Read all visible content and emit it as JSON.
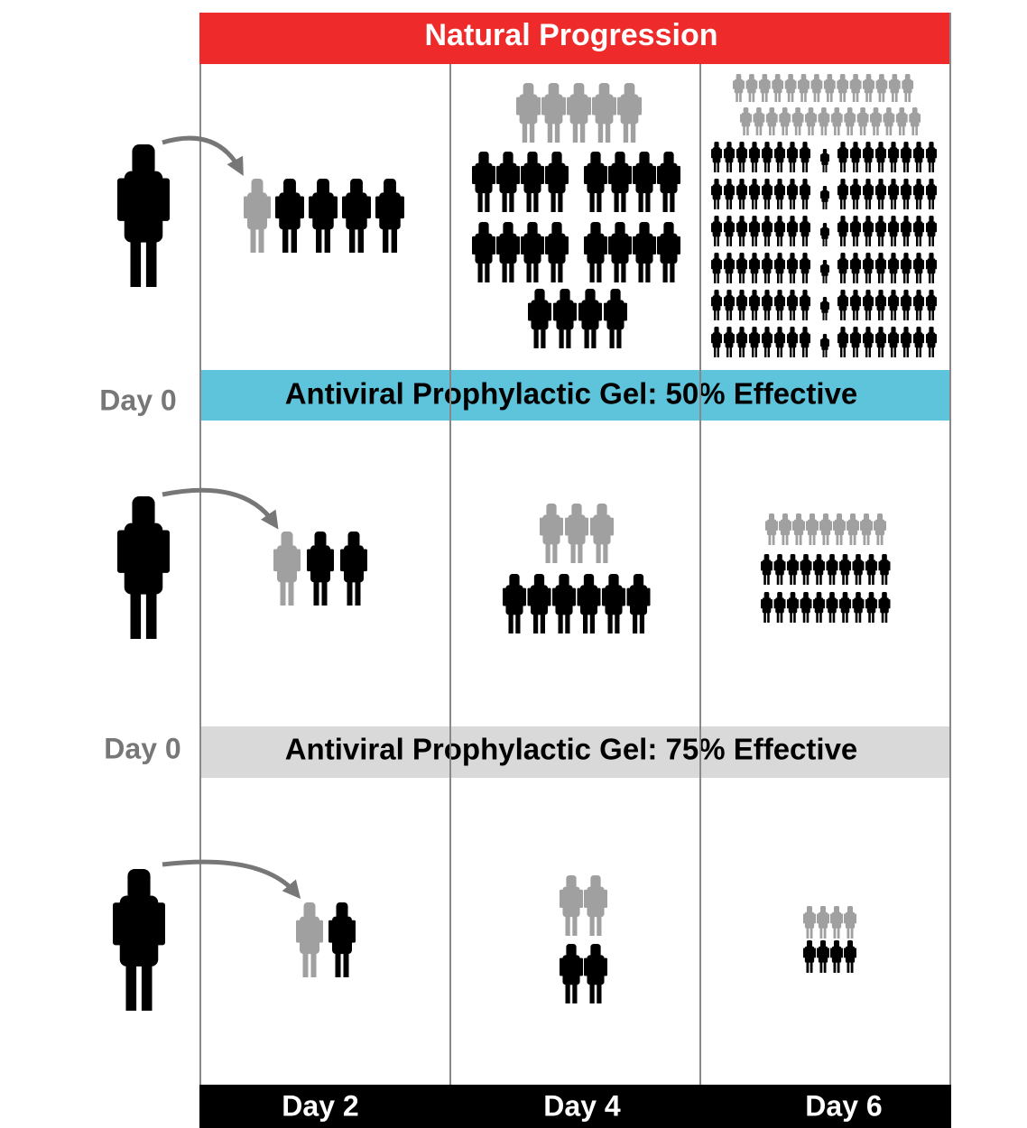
{
  "header": {
    "title": "Natural Progression"
  },
  "bands": [
    {
      "title": "Antiviral Prophylactic Gel: 50% Effective",
      "start_label": "Day 0"
    },
    {
      "title": "Antiviral Prophylactic Gel: 75% Effective",
      "start_label": "Day 0"
    }
  ],
  "columns": [
    "Day 2",
    "Day 4",
    "Day 6"
  ]
}
